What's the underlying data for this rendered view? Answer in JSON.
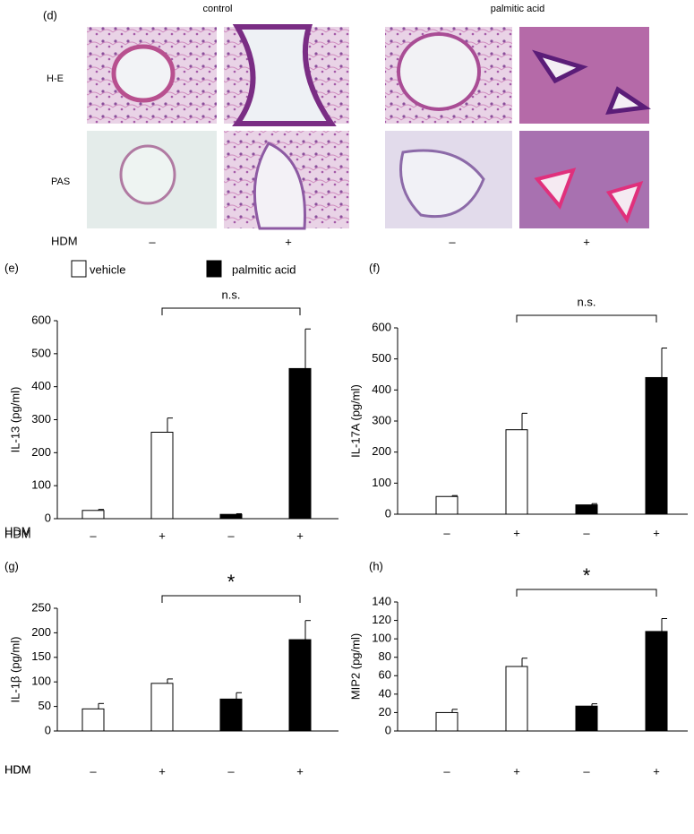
{
  "panel_d": {
    "label": "(d)",
    "groups": [
      "control",
      "palmitic acid"
    ],
    "rows": [
      "H-E",
      "PAS"
    ],
    "x_label": "HDM",
    "x_marks": [
      "–",
      "+",
      "–",
      "+"
    ]
  },
  "legend": [
    {
      "name": "vehicle",
      "color": "#ffffff"
    },
    {
      "name": "palmitic acid",
      "color": "#000000"
    }
  ],
  "chart_data": [
    {
      "type": "bar",
      "panel": "(e)",
      "y_label": "IL-13 (pg/ml)",
      "x_label": "HDM",
      "annotation": "n.s.",
      "categories": [
        "–",
        "+",
        "–",
        "+"
      ],
      "series": [
        {
          "color": "#ffffff",
          "values": [
            25,
            262,
            null,
            null
          ],
          "errors": [
            3,
            43,
            null,
            null
          ]
        },
        {
          "color": "#000000",
          "values": [
            null,
            null,
            13,
            455
          ],
          "errors": [
            null,
            null,
            2,
            120
          ]
        }
      ],
      "ylim": [
        0,
        600
      ],
      "yticks": [
        0,
        100,
        200,
        300,
        400,
        500,
        600
      ]
    },
    {
      "type": "bar",
      "panel": "(f)",
      "y_label": "IL-17A (pg/ml)",
      "x_label": "HDM",
      "annotation": "n.s.",
      "categories": [
        "–",
        "+",
        "–",
        "+"
      ],
      "series": [
        {
          "color": "#ffffff",
          "values": [
            57,
            272,
            null,
            null
          ],
          "errors": [
            3,
            53,
            null,
            null
          ]
        },
        {
          "color": "#000000",
          "values": [
            null,
            null,
            30,
            440
          ],
          "errors": [
            null,
            null,
            4,
            95
          ]
        }
      ],
      "ylim": [
        0,
        600
      ],
      "yticks": [
        0,
        100,
        200,
        300,
        400,
        500,
        600
      ]
    },
    {
      "type": "bar",
      "panel": "(g)",
      "y_label": "IL-1β (pg/ml)",
      "x_label": "HDM",
      "annotation": "*",
      "categories": [
        "–",
        "+",
        "–",
        "+"
      ],
      "series": [
        {
          "color": "#ffffff",
          "values": [
            45,
            97,
            null,
            null
          ],
          "errors": [
            11,
            9,
            null,
            null
          ]
        },
        {
          "color": "#000000",
          "values": [
            null,
            null,
            65,
            186
          ],
          "errors": [
            null,
            null,
            13,
            39
          ]
        }
      ],
      "ylim": [
        0,
        250
      ],
      "yticks": [
        0,
        50,
        100,
        150,
        200,
        250
      ]
    },
    {
      "type": "bar",
      "panel": "(h)",
      "y_label": "MIP2 (pg/ml)",
      "x_label": "HDM",
      "annotation": "*",
      "categories": [
        "–",
        "+",
        "–",
        "+"
      ],
      "series": [
        {
          "color": "#ffffff",
          "values": [
            20,
            70,
            null,
            null
          ],
          "errors": [
            3.5,
            9,
            null,
            null
          ]
        },
        {
          "color": "#000000",
          "values": [
            null,
            null,
            27,
            108
          ],
          "errors": [
            null,
            null,
            2.5,
            14
          ]
        }
      ],
      "ylim": [
        0,
        140
      ],
      "yticks": [
        0,
        20,
        40,
        60,
        80,
        100,
        120,
        140
      ]
    }
  ]
}
